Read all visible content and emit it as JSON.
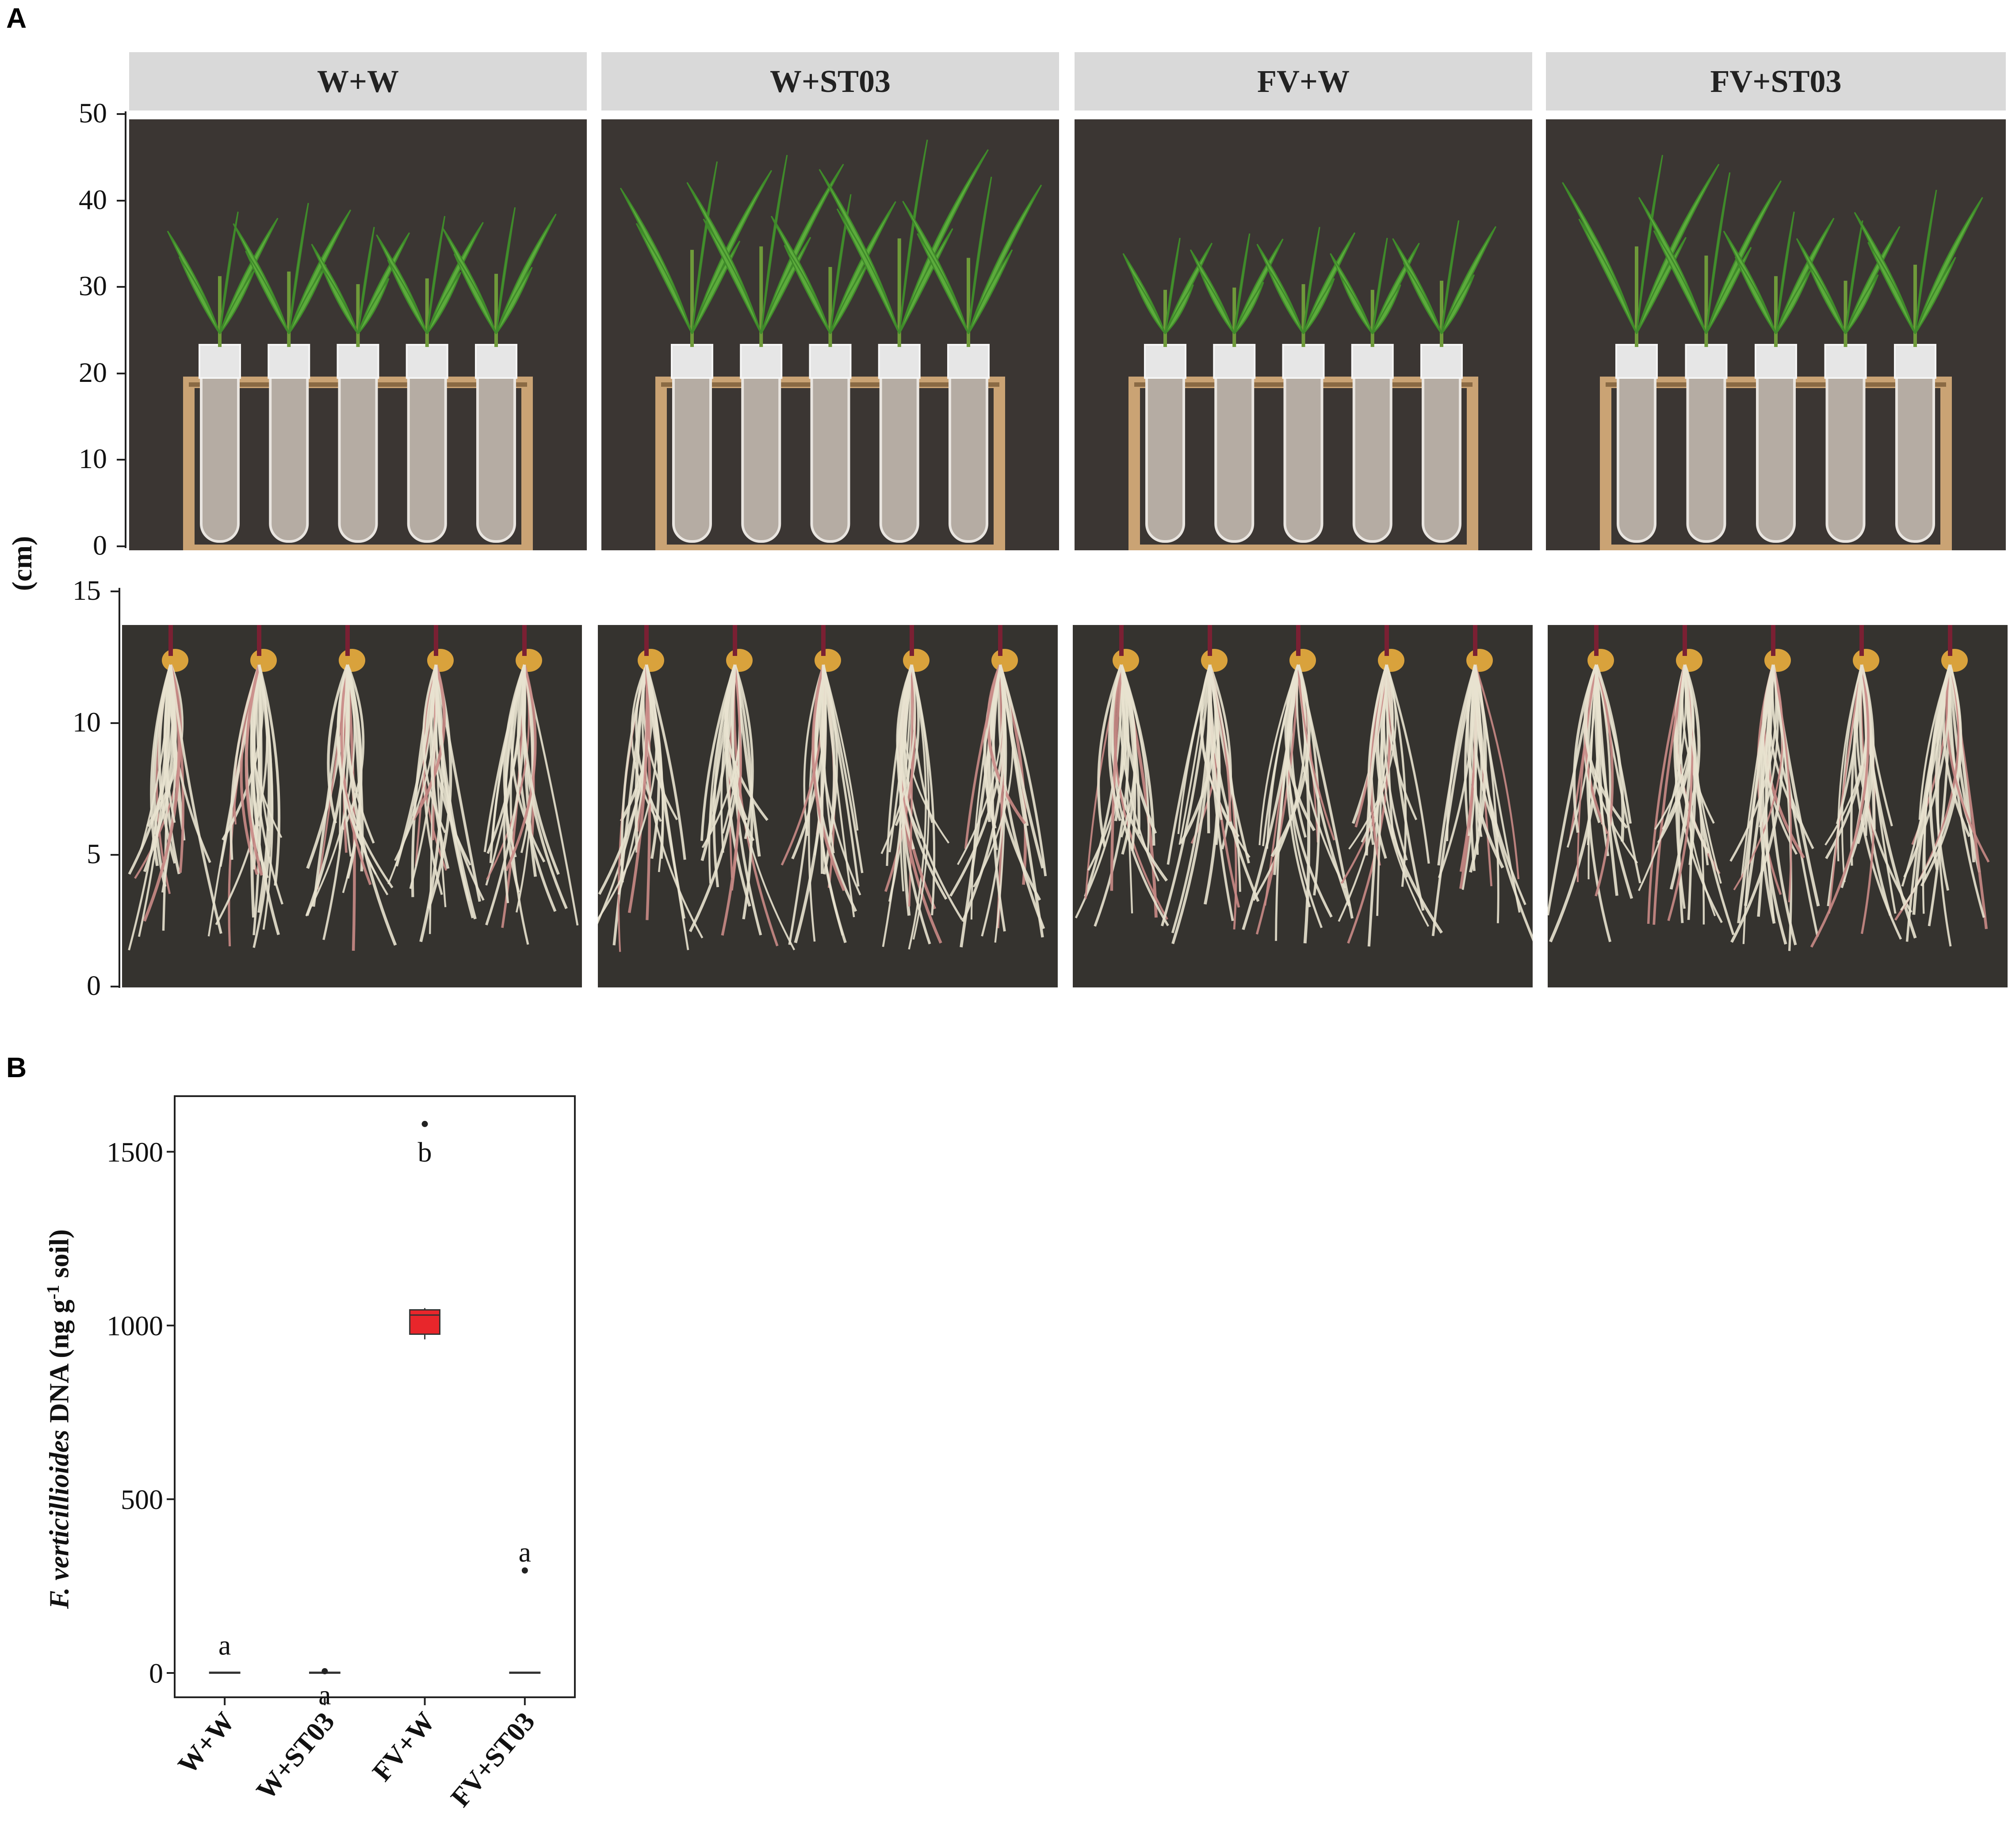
{
  "panel_a": {
    "letter": "A",
    "groups": [
      "W+W",
      "W+ST03",
      "FV+W",
      "FV+ST03"
    ],
    "unit": "(cm)",
    "shoot_axis": {
      "ticks": [
        "50",
        "40",
        "30",
        "20",
        "10",
        "0"
      ],
      "values": [
        50,
        40,
        30,
        20,
        10,
        0
      ]
    },
    "root_axis": {
      "ticks": [
        "15",
        "10",
        "5",
        "0"
      ],
      "values": [
        15,
        10,
        5,
        0
      ]
    }
  },
  "panel_b": {
    "letter": "B",
    "y_label_italic": "F. verticillioides",
    "y_label_rest": " DNA (ng g",
    "y_label_sup": "-1",
    "y_label_end": " soil)"
  },
  "chart_data": {
    "type": "box",
    "ylabel": "F. verticillioides DNA (ng g-1 soil)",
    "ylim": [
      -70,
      1660
    ],
    "yticks": [
      0,
      500,
      1000,
      1500
    ],
    "ytick_labels": [
      "0",
      "500",
      "1000",
      "1500"
    ],
    "categories": [
      "W+W",
      "W+ST03",
      "FV+W",
      "FV+ST03"
    ],
    "series": [
      {
        "category": "W+W",
        "q1": 0,
        "median": 0,
        "q3": 2,
        "whisker_low": 0,
        "whisker_high": 2,
        "outliers": [],
        "letter": "a",
        "fill": "#ffffff"
      },
      {
        "category": "W+ST03",
        "q1": 0,
        "median": 0,
        "q3": 2,
        "whisker_low": 0,
        "whisker_high": 2,
        "outliers": [
          5
        ],
        "letter": "a",
        "fill": "#ffffff"
      },
      {
        "category": "FV+W",
        "q1": 975,
        "median": 1030,
        "q3": 1045,
        "whisker_low": 960,
        "whisker_high": 1050,
        "outliers": [
          1580
        ],
        "letter": "b",
        "fill": "#e8262b"
      },
      {
        "category": "FV+ST03",
        "q1": 0,
        "median": 0,
        "q3": 2,
        "whisker_low": 0,
        "whisker_high": 2,
        "outliers": [
          295
        ],
        "letter": "a",
        "fill": "#ffffff"
      }
    ]
  }
}
